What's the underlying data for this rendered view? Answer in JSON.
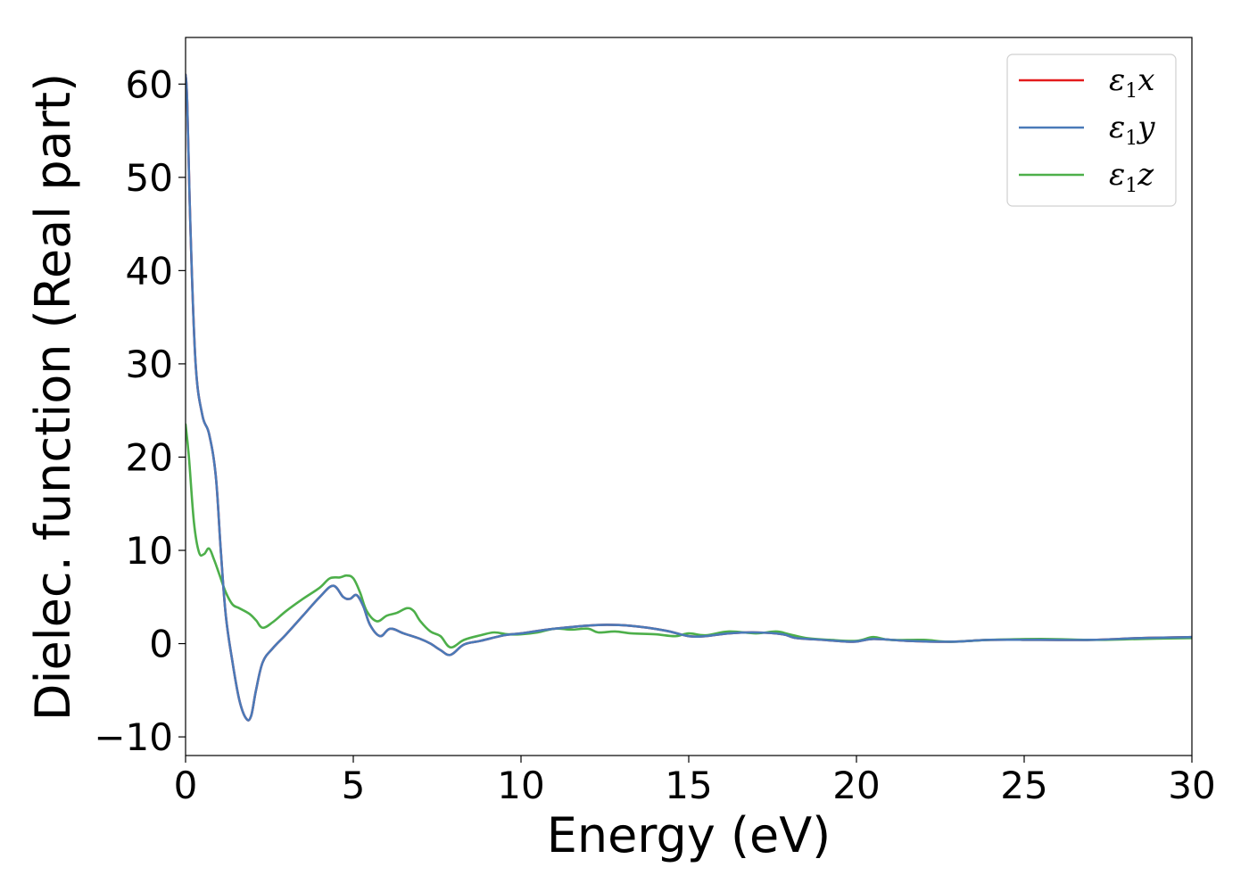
{
  "chart_data": {
    "type": "line",
    "title": "",
    "xlabel": "Energy (eV)",
    "ylabel": "Dielec. function (Real part)",
    "xlim": [
      0,
      30
    ],
    "ylim": [
      -12,
      65
    ],
    "xticks": [
      0,
      5,
      10,
      15,
      20,
      25,
      30
    ],
    "xtick_labels": [
      "0",
      "5",
      "10",
      "15",
      "20",
      "25",
      "30"
    ],
    "yticks": [
      -10,
      0,
      10,
      20,
      30,
      40,
      50,
      60
    ],
    "ytick_labels": [
      "−10",
      "0",
      "10",
      "20",
      "30",
      "40",
      "50",
      "60"
    ],
    "grid": false,
    "legend_position": "top-right",
    "series": [
      {
        "name": "ε₁x",
        "name_base": "ε",
        "name_sub": "1",
        "name_var": "x",
        "color": "#e41a1c",
        "x": [
          0,
          0.05,
          0.15,
          0.3,
          0.5,
          0.7,
          0.9,
          1.05,
          1.2,
          1.4,
          1.6,
          1.8,
          1.95,
          2.1,
          2.3,
          2.6,
          3.0,
          3.5,
          4.0,
          4.4,
          4.7,
          4.9,
          5.1,
          5.3,
          5.5,
          5.8,
          6.1,
          6.5,
          7.0,
          7.3,
          7.6,
          7.9,
          8.3,
          8.8,
          9.5,
          10.0,
          11.0,
          12.3,
          13.3,
          14.3,
          15.0,
          15.5,
          16.2,
          17.0,
          17.8,
          18.2,
          19.0,
          19.9,
          20.5,
          21.5,
          22.8,
          24.0,
          25.5,
          27.0,
          28.5,
          30.0
        ],
        "values": [
          61.0,
          58.0,
          44.0,
          30.0,
          24.5,
          22.5,
          18.0,
          10.0,
          3.0,
          -2.0,
          -6.0,
          -8.0,
          -7.8,
          -5.0,
          -2.0,
          -0.5,
          1.0,
          3.0,
          5.0,
          6.2,
          5.0,
          4.8,
          5.2,
          4.0,
          2.0,
          0.8,
          1.6,
          1.1,
          0.5,
          0.0,
          -0.7,
          -1.2,
          -0.1,
          0.3,
          0.9,
          1.1,
          1.6,
          2.0,
          1.9,
          1.4,
          0.8,
          0.8,
          1.1,
          1.2,
          1.0,
          0.6,
          0.4,
          0.2,
          0.5,
          0.3,
          0.2,
          0.4,
          0.4,
          0.4,
          0.6,
          0.7
        ]
      },
      {
        "name": "ε₁y",
        "name_base": "ε",
        "name_sub": "1",
        "name_var": "y",
        "color": "#4a7ab8",
        "x": [
          0,
          0.05,
          0.15,
          0.3,
          0.5,
          0.7,
          0.9,
          1.05,
          1.2,
          1.4,
          1.6,
          1.8,
          1.95,
          2.1,
          2.3,
          2.6,
          3.0,
          3.5,
          4.0,
          4.4,
          4.7,
          4.9,
          5.1,
          5.3,
          5.5,
          5.8,
          6.1,
          6.5,
          7.0,
          7.3,
          7.6,
          7.9,
          8.3,
          8.8,
          9.5,
          10.0,
          11.0,
          12.3,
          13.3,
          14.3,
          15.0,
          15.5,
          16.2,
          17.0,
          17.8,
          18.2,
          19.0,
          19.9,
          20.5,
          21.5,
          22.8,
          24.0,
          25.5,
          27.0,
          28.5,
          30.0
        ],
        "values": [
          61.0,
          58.0,
          44.0,
          30.0,
          24.5,
          22.5,
          18.0,
          10.0,
          3.0,
          -2.0,
          -6.0,
          -8.0,
          -7.8,
          -5.0,
          -2.0,
          -0.5,
          1.0,
          3.0,
          5.0,
          6.2,
          5.0,
          4.8,
          5.2,
          4.0,
          2.0,
          0.8,
          1.6,
          1.1,
          0.5,
          0.0,
          -0.7,
          -1.2,
          -0.1,
          0.3,
          0.9,
          1.1,
          1.6,
          2.0,
          1.9,
          1.4,
          0.8,
          0.8,
          1.1,
          1.2,
          1.0,
          0.6,
          0.4,
          0.2,
          0.5,
          0.3,
          0.2,
          0.4,
          0.4,
          0.4,
          0.6,
          0.7
        ]
      },
      {
        "name": "ε₁z",
        "name_base": "ε",
        "name_sub": "1",
        "name_var": "z",
        "color": "#4daf4a",
        "x": [
          0,
          0.1,
          0.25,
          0.4,
          0.55,
          0.7,
          0.85,
          1.0,
          1.2,
          1.4,
          1.6,
          1.9,
          2.1,
          2.3,
          2.6,
          3.0,
          3.5,
          4.0,
          4.3,
          4.6,
          4.8,
          5.0,
          5.2,
          5.4,
          5.7,
          6.0,
          6.3,
          6.6,
          6.8,
          7.0,
          7.3,
          7.6,
          7.9,
          8.3,
          8.8,
          9.2,
          9.6,
          10.0,
          10.5,
          11.0,
          11.5,
          12.0,
          12.3,
          12.8,
          13.3,
          14.0,
          14.6,
          15.0,
          15.5,
          16.2,
          17.0,
          17.6,
          18.0,
          18.5,
          19.2,
          20.0,
          20.5,
          21.0,
          22.0,
          22.8,
          24.0,
          25.5,
          27.0,
          28.5,
          30.0
        ],
        "values": [
          23.5,
          20.0,
          13.0,
          9.8,
          9.6,
          10.2,
          9.0,
          7.5,
          5.5,
          4.2,
          3.8,
          3.2,
          2.5,
          1.7,
          2.3,
          3.5,
          4.8,
          6.0,
          7.0,
          7.1,
          7.3,
          7.0,
          5.5,
          3.5,
          2.4,
          3.0,
          3.3,
          3.8,
          3.5,
          2.4,
          1.3,
          0.8,
          -0.4,
          0.4,
          0.9,
          1.2,
          1.0,
          1.0,
          1.2,
          1.6,
          1.5,
          1.6,
          1.2,
          1.3,
          1.1,
          1.0,
          0.8,
          1.1,
          0.9,
          1.3,
          1.1,
          1.3,
          1.0,
          0.6,
          0.4,
          0.3,
          0.7,
          0.4,
          0.4,
          0.2,
          0.4,
          0.5,
          0.4,
          0.5,
          0.6
        ]
      }
    ]
  }
}
